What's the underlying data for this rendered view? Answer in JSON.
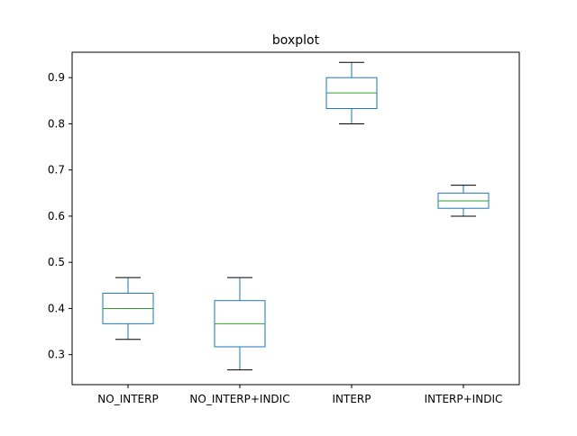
{
  "chart_data": {
    "type": "boxplot",
    "title": "boxplot",
    "xlabel": "",
    "ylabel": "",
    "ylim": [
      0.235,
      0.955
    ],
    "yticks": [
      0.3,
      0.4,
      0.5,
      0.6,
      0.7,
      0.8,
      0.9
    ],
    "ytick_labels": [
      "0.3",
      "0.4",
      "0.5",
      "0.6",
      "0.7",
      "0.8",
      "0.9"
    ],
    "grid": false,
    "categories": [
      "NO_INTERP",
      "NO_INTERP+INDIC",
      "INTERP",
      "INTERP+INDIC"
    ],
    "boxes": [
      {
        "category": "NO_INTERP",
        "whisker_low": 0.333,
        "q1": 0.367,
        "median": 0.4,
        "q3": 0.433,
        "whisker_high": 0.467
      },
      {
        "category": "NO_INTERP+INDIC",
        "whisker_low": 0.267,
        "q1": 0.317,
        "median": 0.367,
        "q3": 0.417,
        "whisker_high": 0.467
      },
      {
        "category": "INTERP",
        "whisker_low": 0.8,
        "q1": 0.833,
        "median": 0.867,
        "q3": 0.9,
        "whisker_high": 0.933
      },
      {
        "category": "INTERP+INDIC",
        "whisker_low": 0.6,
        "q1": 0.617,
        "median": 0.633,
        "q3": 0.65,
        "whisker_high": 0.667
      }
    ],
    "colors": {
      "box": "#1f77b4",
      "median": "#2ca02c",
      "whisker": "#1f77b4",
      "cap": "#000000",
      "axes": "#000000"
    }
  }
}
